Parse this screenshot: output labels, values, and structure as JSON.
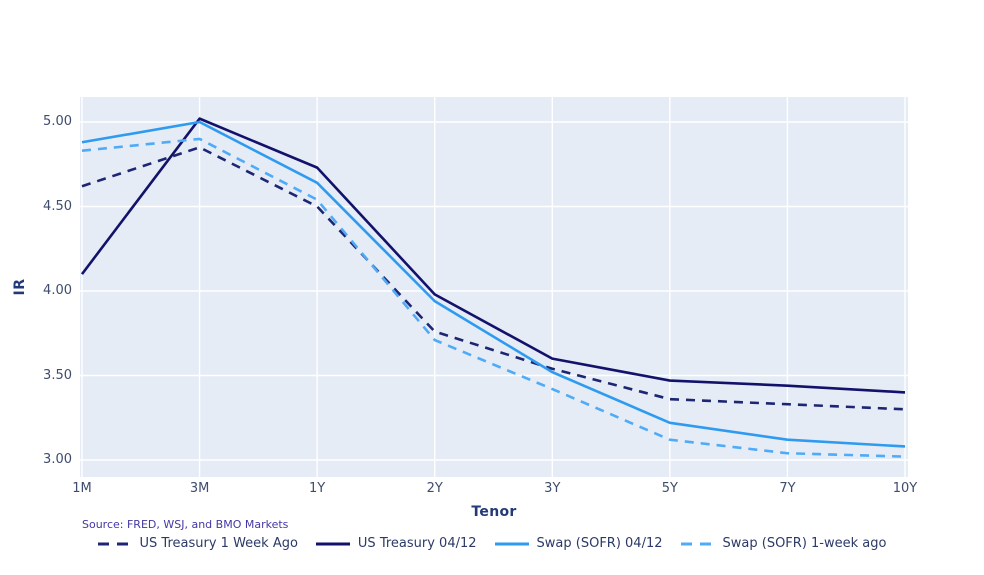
{
  "chart_data": {
    "type": "line",
    "title": "",
    "xlabel": "Tenor",
    "ylabel": "IR",
    "categories": [
      "1M",
      "3M",
      "1Y",
      "2Y",
      "3Y",
      "5Y",
      "7Y",
      "10Y"
    ],
    "ytick_values": [
      3.0,
      3.5,
      4.0,
      4.5,
      5.0
    ],
    "ytick_labels": [
      "3.00",
      "3.50",
      "4.00",
      "4.50",
      "5.00"
    ],
    "ylim": [
      2.9,
      5.15
    ],
    "grid": true,
    "legend_position": "bottom-center",
    "series": [
      {
        "name": "US Treasury 1 Week Ago",
        "color": "#1d2672",
        "dash": "dashed",
        "values": [
          4.62,
          4.85,
          4.5,
          3.76,
          3.54,
          3.36,
          3.33,
          3.3
        ]
      },
      {
        "name": "US Treasury 04/12",
        "color": "#12126b",
        "dash": "solid",
        "values": [
          4.1,
          5.02,
          4.73,
          3.98,
          3.6,
          3.47,
          3.44,
          3.4
        ]
      },
      {
        "name": "Swap (SOFR) 04/12",
        "color": "#2e9bf0",
        "dash": "solid",
        "values": [
          4.88,
          5.0,
          4.64,
          3.94,
          3.52,
          3.22,
          3.12,
          3.08
        ]
      },
      {
        "name": "Swap (SOFR) 1-week ago",
        "color": "#4fabf7",
        "dash": "dashed",
        "values": [
          4.83,
          4.9,
          4.54,
          3.71,
          3.42,
          3.12,
          3.04,
          3.02
        ]
      }
    ],
    "source_note": "Source: FRED, WSJ, and BMO Markets"
  },
  "colors": {
    "page_bg": "#ffffff",
    "plot_bg": "#e5ecf6",
    "grid": "#ffffff",
    "tick_label": "#3e4c6e",
    "axis_title": "#243a78",
    "source_text": "#4338a4",
    "legend_text": "#2b3a67"
  }
}
